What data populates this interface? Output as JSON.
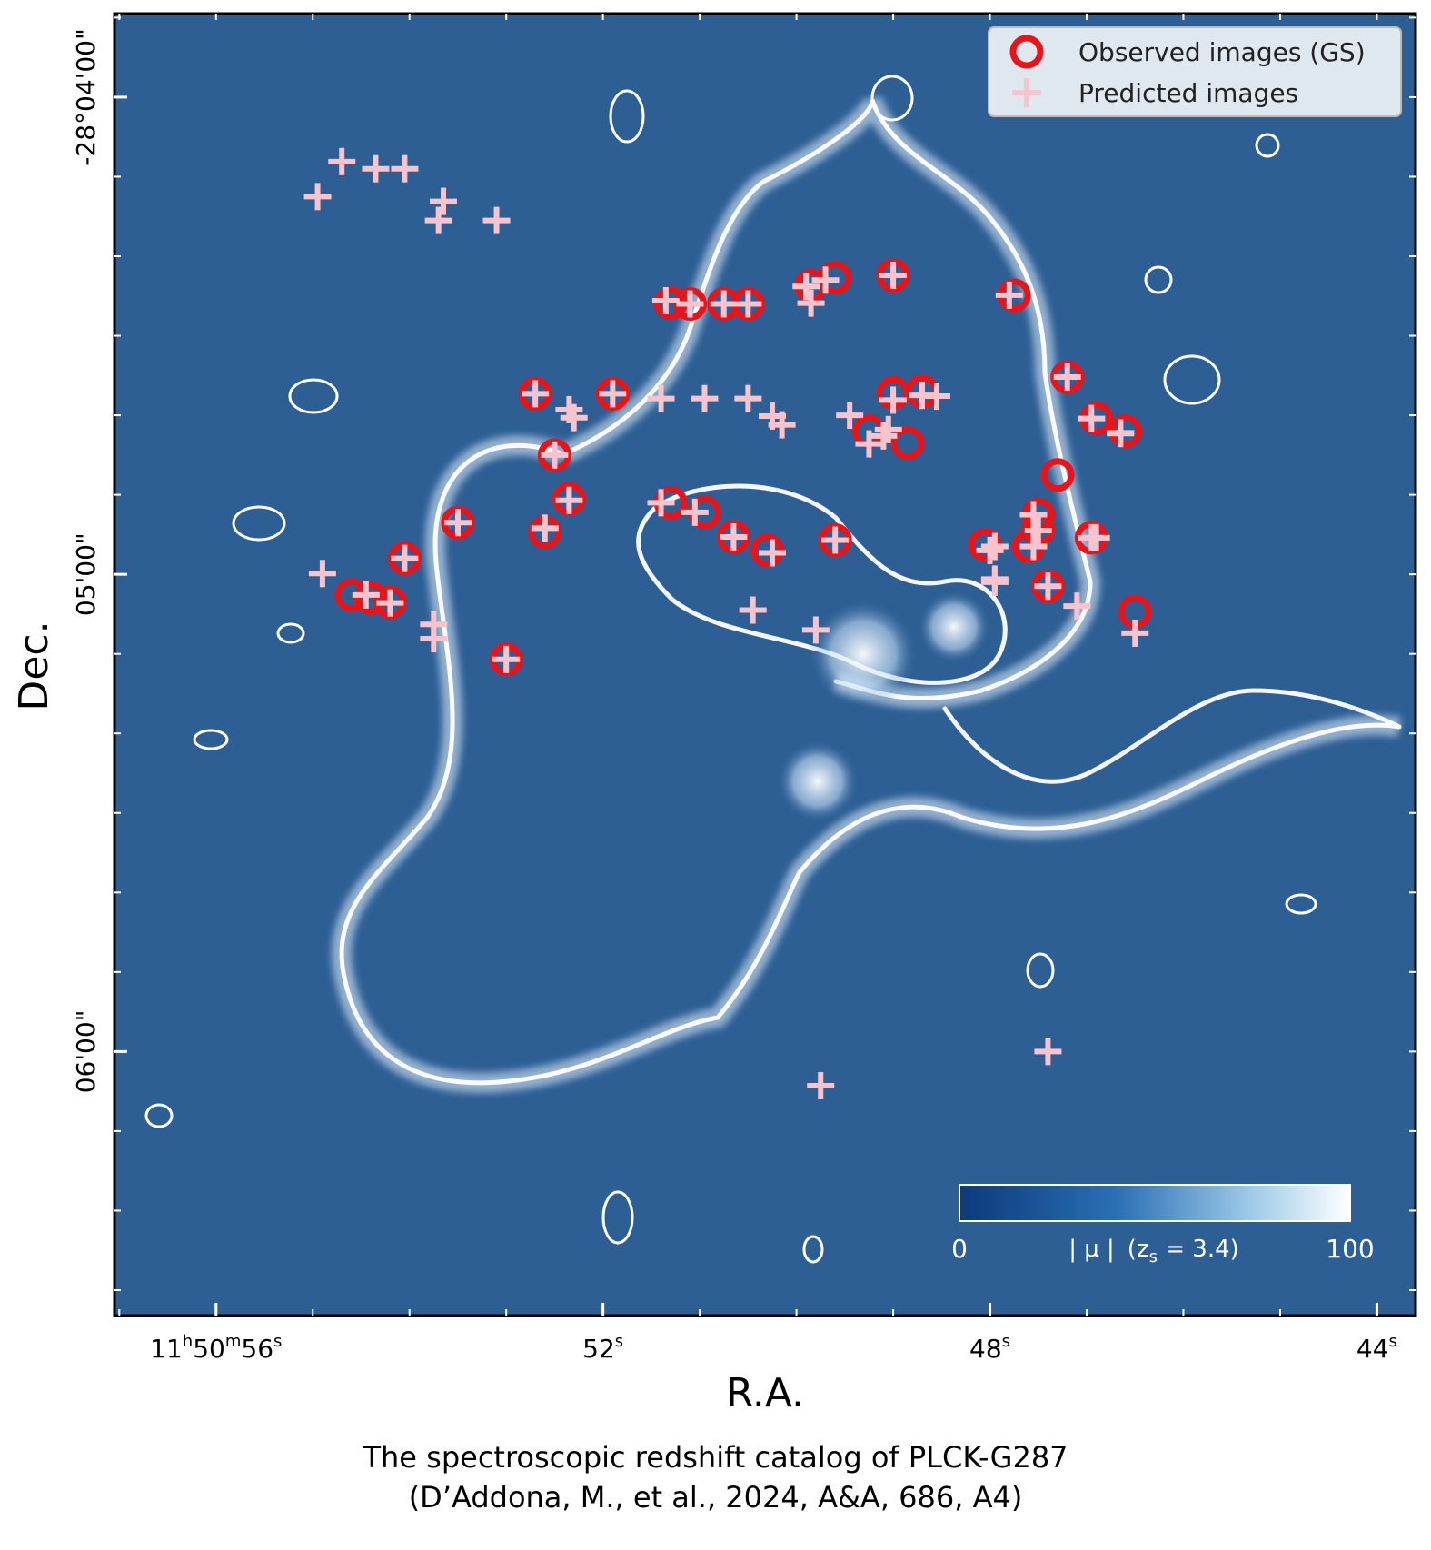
{
  "chart_data": {
    "type": "scatter",
    "xlabel": "R.A.",
    "ylabel": "Dec.",
    "x_ticks": [
      {
        "h": "11",
        "m": "50",
        "s": "56",
        "value_s": 56
      },
      {
        "s": "52",
        "value_s": 52
      },
      {
        "s": "48",
        "value_s": 48
      },
      {
        "s": "44",
        "value_s": 44
      }
    ],
    "y_ticks": [
      {
        "label": "-28°04'00\"",
        "value_arcsec": 0
      },
      {
        "label": "05'00\"",
        "value_arcsec": 60
      },
      {
        "label": "06'00\"",
        "value_arcsec": 120
      }
    ],
    "xlim_s": [
      57.05,
      43.6
    ],
    "ylim_arcsec": [
      -10.5,
      153.2
    ],
    "legend": {
      "position": "top-right",
      "observed_label": "Observed images (GS)",
      "predicted_label": "Predicted images"
    },
    "colorbar": {
      "label_prefix": "| μ |",
      "label_cond": "(z",
      "label_sub": "s",
      "label_value": " = 3.4)",
      "min_label": "0",
      "max_label": "100",
      "colors": [
        "#0c3a7a",
        "#ffffff"
      ],
      "position": "bottom-right"
    },
    "background_color": "#2d5f95",
    "observed_color": "#e8141a",
    "predicted_color": "#f7c3cc",
    "series": [
      {
        "name": "Observed images (GS)",
        "marker": "circle",
        "points": [
          [
            51.3,
            25.9
          ],
          [
            51.1,
            26.0
          ],
          [
            50.75,
            26.0
          ],
          [
            50.5,
            26.0
          ],
          [
            49.85,
            23.7
          ],
          [
            49.6,
            22.7
          ],
          [
            49.0,
            22.4
          ],
          [
            47.75,
            24.9
          ],
          [
            47.2,
            35.2
          ],
          [
            46.9,
            40.4
          ],
          [
            46.6,
            42.0
          ],
          [
            47.3,
            47.5
          ],
          [
            47.5,
            52.5
          ],
          [
            47.5,
            54.4
          ],
          [
            47.6,
            56.5
          ],
          [
            48.05,
            56.3
          ],
          [
            46.95,
            55.4
          ],
          [
            47.4,
            61.5
          ],
          [
            46.5,
            64.7
          ],
          [
            49.0,
            37.2
          ],
          [
            48.7,
            37.0
          ],
          [
            49.25,
            42.0
          ],
          [
            48.85,
            43.5
          ],
          [
            49.6,
            55.7
          ],
          [
            50.3,
            57.0
          ],
          [
            50.65,
            55.3
          ],
          [
            50.95,
            52.2
          ],
          [
            51.3,
            51.0
          ],
          [
            52.35,
            50.5
          ],
          [
            52.5,
            45.0
          ],
          [
            52.7,
            37.3
          ],
          [
            51.9,
            37.3
          ],
          [
            52.6,
            54.7
          ],
          [
            53.5,
            53.5
          ],
          [
            54.05,
            58.0
          ],
          [
            54.6,
            62.6
          ],
          [
            54.4,
            63.0
          ],
          [
            54.2,
            63.5
          ],
          [
            53.0,
            70.7
          ]
        ]
      },
      {
        "name": "Predicted images",
        "marker": "plus",
        "points": [
          [
            54.7,
            8.1
          ],
          [
            54.35,
            9.0
          ],
          [
            54.05,
            9.0
          ],
          [
            54.95,
            12.5
          ],
          [
            53.65,
            13.1
          ],
          [
            53.1,
            15.5
          ],
          [
            53.7,
            15.5
          ],
          [
            51.35,
            25.6
          ],
          [
            51.1,
            26.0
          ],
          [
            50.75,
            26.0
          ],
          [
            50.5,
            26.0
          ],
          [
            49.9,
            23.8
          ],
          [
            49.7,
            23.0
          ],
          [
            49.85,
            25.9
          ],
          [
            49.0,
            22.4
          ],
          [
            47.8,
            24.9
          ],
          [
            47.2,
            35.2
          ],
          [
            46.95,
            40.4
          ],
          [
            46.65,
            42.2
          ],
          [
            49.0,
            38.1
          ],
          [
            48.7,
            37.5
          ],
          [
            48.55,
            37.6
          ],
          [
            51.4,
            37.9
          ],
          [
            50.95,
            37.9
          ],
          [
            50.5,
            37.9
          ],
          [
            52.35,
            39.3
          ],
          [
            52.3,
            40.3
          ],
          [
            50.25,
            40.1
          ],
          [
            50.15,
            41.2
          ],
          [
            49.45,
            40.0
          ],
          [
            52.7,
            37.3
          ],
          [
            52.6,
            54.2
          ],
          [
            52.5,
            45.0
          ],
          [
            52.35,
            50.7
          ],
          [
            51.9,
            37.3
          ],
          [
            51.4,
            51.0
          ],
          [
            51.05,
            52.2
          ],
          [
            50.65,
            55.3
          ],
          [
            50.25,
            57.3
          ],
          [
            49.6,
            55.7
          ],
          [
            49.1,
            42.6
          ],
          [
            49.25,
            43.6
          ],
          [
            47.95,
            56.5
          ],
          [
            47.55,
            56.5
          ],
          [
            47.5,
            54.5
          ],
          [
            47.55,
            52.5
          ],
          [
            46.9,
            55.4
          ],
          [
            47.1,
            64.0
          ],
          [
            46.5,
            67.4
          ],
          [
            47.95,
            60.6
          ],
          [
            47.4,
            61.5
          ],
          [
            46.95,
            55.4
          ],
          [
            50.45,
            64.5
          ],
          [
            49.8,
            67.0
          ],
          [
            54.9,
            59.9
          ],
          [
            54.45,
            62.6
          ],
          [
            54.2,
            63.6
          ],
          [
            53.75,
            66.3
          ],
          [
            53.75,
            68.1
          ],
          [
            47.4,
            120.0
          ],
          [
            49.75,
            124.3
          ],
          [
            53.0,
            70.7
          ],
          [
            53.5,
            53.5
          ],
          [
            54.05,
            58.0
          ],
          [
            47.95,
            61.0
          ],
          [
            48.0,
            57.0
          ],
          [
            46.65,
            42.3
          ],
          [
            49.05,
            41.8
          ]
        ]
      }
    ]
  },
  "caption": {
    "line1": "The spectroscopic redshift catalog of PLCK-G287",
    "line2": "(D’Addona, M., et al., 2024, A&A, 686, A4)"
  }
}
